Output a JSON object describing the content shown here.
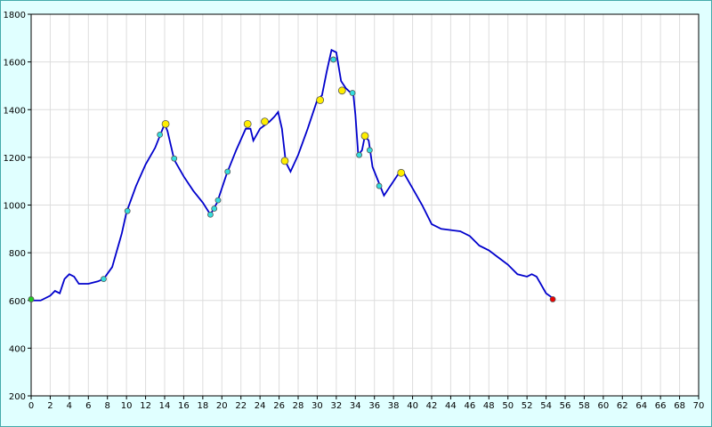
{
  "chart_data": {
    "type": "line",
    "xlim": [
      0,
      70
    ],
    "ylim": [
      200,
      1800
    ],
    "xticks": [
      0,
      2,
      4,
      6,
      8,
      10,
      12,
      14,
      16,
      18,
      20,
      22,
      24,
      26,
      28,
      30,
      32,
      34,
      36,
      38,
      40,
      42,
      44,
      46,
      48,
      50,
      52,
      54,
      56,
      58,
      60,
      62,
      64,
      66,
      68,
      70
    ],
    "yticks": [
      200,
      400,
      600,
      800,
      1000,
      1200,
      1400,
      1600,
      1800
    ],
    "grid": true,
    "series": [
      {
        "kind": "line",
        "color": "#0000cc",
        "x": [
          0,
          1,
          2,
          2.5,
          3,
          3.5,
          4,
          4.5,
          5,
          6,
          7,
          7.6,
          8.5,
          9.5,
          10,
          11,
          12,
          13,
          13.6,
          14,
          14.3,
          15,
          16,
          17,
          18,
          18.8,
          19.5,
          20.5,
          21.5,
          22.5,
          23,
          23.3,
          24,
          25,
          25.5,
          25.9,
          26.3,
          26.7,
          27.2,
          28,
          29,
          30,
          30.5,
          31,
          31.5,
          32,
          32.5,
          33,
          33.8,
          34,
          34.3,
          34.7,
          35,
          35.4,
          35.8,
          36.5,
          37,
          37.5,
          38.5,
          39,
          40,
          41,
          42,
          43,
          44,
          45,
          46,
          47,
          48,
          49,
          50,
          51,
          52,
          52.5,
          53,
          54,
          54.7
        ],
        "values": [
          600,
          600,
          620,
          640,
          630,
          690,
          710,
          700,
          670,
          670,
          680,
          690,
          740,
          880,
          970,
          1080,
          1170,
          1240,
          1300,
          1340,
          1310,
          1190,
          1120,
          1060,
          1010,
          960,
          1010,
          1130,
          1230,
          1320,
          1320,
          1270,
          1320,
          1350,
          1370,
          1390,
          1320,
          1180,
          1140,
          1210,
          1320,
          1440,
          1460,
          1560,
          1650,
          1640,
          1520,
          1490,
          1460,
          1380,
          1210,
          1230,
          1290,
          1270,
          1160,
          1090,
          1040,
          1070,
          1130,
          1140,
          1070,
          1000,
          920,
          900,
          895,
          890,
          870,
          830,
          810,
          780,
          750,
          710,
          700,
          710,
          700,
          630,
          610
        ]
      },
      {
        "kind": "points",
        "color": "#22cc22",
        "x": [
          0
        ],
        "values": [
          605
        ]
      },
      {
        "kind": "points",
        "color": "#ee0000",
        "x": [
          54.7
        ],
        "values": [
          605
        ]
      },
      {
        "kind": "points",
        "color": "#33dddd",
        "x": [
          7.6,
          10.1,
          13.5,
          15,
          18.8,
          19.2,
          19.6,
          20.6,
          31.7,
          33.7,
          34.4,
          35.5,
          36.5
        ],
        "values": [
          690,
          975,
          1295,
          1195,
          960,
          985,
          1020,
          1140,
          1610,
          1470,
          1210,
          1230,
          1080
        ]
      },
      {
        "kind": "points",
        "color": "#ffee00",
        "x": [
          14.1,
          22.7,
          24.5,
          26.6,
          30.3,
          32.6,
          35,
          38.8
        ],
        "values": [
          1340,
          1340,
          1350,
          1185,
          1440,
          1480,
          1290,
          1135
        ]
      }
    ]
  }
}
